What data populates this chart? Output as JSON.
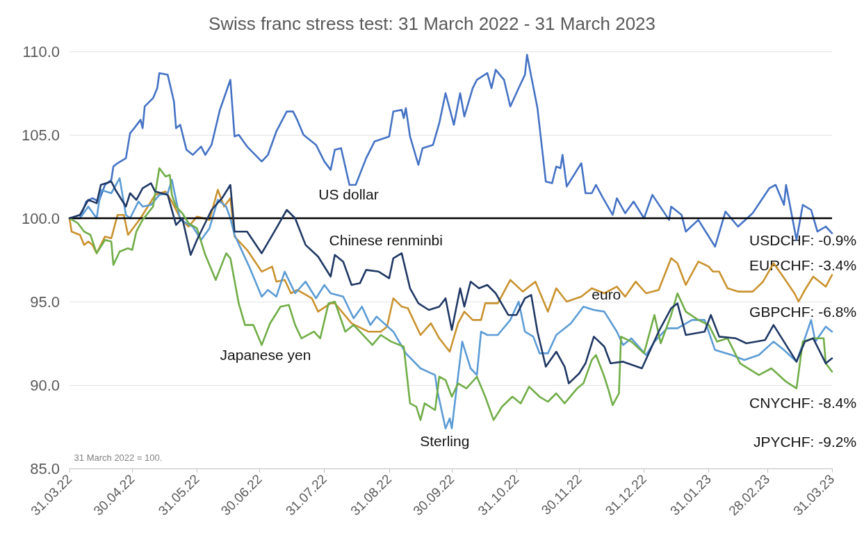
{
  "chart_data": {
    "type": "line",
    "title": "Swiss franc stress test: 31 March 2022 - 31 March 2023",
    "xlim": [
      "2022-03-31",
      "2023-03-31"
    ],
    "xticks": [
      {
        "value": "2022-03-31",
        "label": "31.03.22"
      },
      {
        "value": "2022-04-30",
        "label": "30.04.22"
      },
      {
        "value": "2022-05-31",
        "label": "31.05.22"
      },
      {
        "value": "2022-06-30",
        "label": "30.06.22"
      },
      {
        "value": "2022-07-31",
        "label": "31.07.22"
      },
      {
        "value": "2022-08-31",
        "label": "31.08.22"
      },
      {
        "value": "2022-09-30",
        "label": "30.09.22"
      },
      {
        "value": "2022-10-31",
        "label": "31.10.22"
      },
      {
        "value": "2022-11-30",
        "label": "30.11.22"
      },
      {
        "value": "2022-12-31",
        "label": "31.12.22"
      },
      {
        "value": "2023-01-31",
        "label": "31.01.23"
      },
      {
        "value": "2023-02-28",
        "label": "28.02.23"
      },
      {
        "value": "2023-03-31",
        "label": "31.03.23"
      }
    ],
    "ylim": [
      85,
      110
    ],
    "yticks": [
      {
        "value": 85,
        "label": "85.0"
      },
      {
        "value": 90,
        "label": "90.0"
      },
      {
        "value": 95,
        "label": "95.0"
      },
      {
        "value": 100,
        "label": "100.0"
      },
      {
        "value": 105,
        "label": "105.0"
      },
      {
        "value": 110,
        "label": "110.0"
      }
    ],
    "grid": "y",
    "ref_lines": [
      {
        "axis": "y",
        "value": 100,
        "color": "#000000"
      }
    ],
    "series": [
      {
        "name": "US dollar",
        "color": "#4472c4",
        "x": [
          "2022-03-31",
          "2022-04-05",
          "2022-04-08",
          "2022-04-11",
          "2022-04-14",
          "2022-04-17",
          "2022-04-20",
          "2022-04-21",
          "2022-04-23",
          "2022-04-27",
          "2022-04-29",
          "2022-05-01",
          "2022-05-04",
          "2022-05-05",
          "2022-05-06",
          "2022-05-10",
          "2022-05-12",
          "2022-05-13",
          "2022-05-17",
          "2022-05-20",
          "2022-05-21",
          "2022-05-23",
          "2022-05-26",
          "2022-05-29",
          "2022-06-02",
          "2022-06-04",
          "2022-06-07",
          "2022-06-11",
          "2022-06-16",
          "2022-06-18",
          "2022-06-20",
          "2022-06-24",
          "2022-07-01",
          "2022-07-04",
          "2022-07-08",
          "2022-07-13",
          "2022-07-16",
          "2022-07-18",
          "2022-07-21",
          "2022-07-27",
          "2022-07-31",
          "2022-08-03",
          "2022-08-05",
          "2022-08-08",
          "2022-08-12",
          "2022-08-15",
          "2022-08-20",
          "2022-08-24",
          "2022-08-31",
          "2022-09-02",
          "2022-09-06",
          "2022-09-07",
          "2022-09-08",
          "2022-09-10",
          "2022-09-14",
          "2022-09-16",
          "2022-09-21",
          "2022-09-24",
          "2022-09-27",
          "2022-10-01",
          "2022-10-04",
          "2022-10-06",
          "2022-10-10",
          "2022-10-12",
          "2022-10-17",
          "2022-10-19",
          "2022-10-21",
          "2022-10-25",
          "2022-10-28",
          "2022-11-01",
          "2022-11-04",
          "2022-11-05",
          "2022-11-10",
          "2022-11-14",
          "2022-11-17",
          "2022-11-19",
          "2022-11-21",
          "2022-11-22",
          "2022-11-24",
          "2022-12-01",
          "2022-12-03",
          "2022-12-06",
          "2022-12-08",
          "2022-12-11",
          "2022-12-16",
          "2022-12-18",
          "2022-12-22",
          "2022-12-26",
          "2022-12-31",
          "2023-01-04",
          "2023-01-12",
          "2023-01-13",
          "2023-01-18",
          "2023-01-20",
          "2023-01-26",
          "2023-02-03",
          "2023-02-08",
          "2023-02-14",
          "2023-02-21",
          "2023-03-01",
          "2023-03-04",
          "2023-03-08",
          "2023-03-09",
          "2023-03-14",
          "2023-03-17",
          "2023-03-21",
          "2023-03-24",
          "2023-03-28",
          "2023-03-31"
        ],
        "values": [
          100,
          100,
          101,
          101.2,
          101,
          102,
          102.3,
          103.1,
          103.3,
          103.6,
          105.1,
          105.4,
          105.9,
          105.4,
          106.7,
          107.2,
          107.8,
          108.7,
          108.6,
          107,
          105.4,
          105.6,
          104.1,
          103.8,
          104.3,
          103.8,
          104.4,
          106.5,
          108.3,
          104.9,
          105,
          104.3,
          103.4,
          103.8,
          105.2,
          106.4,
          106.4,
          105.9,
          105,
          104.4,
          103.4,
          102.9,
          104.1,
          104.2,
          102,
          102,
          103.6,
          104.6,
          104.9,
          106.4,
          106.5,
          106,
          106.6,
          104.9,
          103.2,
          104.2,
          104.4,
          105.7,
          107.5,
          105.6,
          107.5,
          106.1,
          107.8,
          108.3,
          108.7,
          107.8,
          108.9,
          108.3,
          106.7,
          107.8,
          108.6,
          109.8,
          106.6,
          102.2,
          102.1,
          103.1,
          103,
          103.8,
          101.9,
          103.3,
          101.5,
          101.5,
          102,
          101.3,
          100.2,
          101.2,
          100.3,
          101,
          100,
          101.4,
          99.9,
          100.7,
          100.2,
          99.2,
          99.9,
          98.3,
          100.4,
          99.5,
          100.3,
          101.8,
          102,
          100.8,
          102,
          98.7,
          100.8,
          100.5,
          99.2,
          99.5,
          99.1
        ]
      },
      {
        "name": "euro",
        "color": "#c9922e",
        "x": [
          "2022-03-31",
          "2022-04-01",
          "2022-04-05",
          "2022-04-07",
          "2022-04-09",
          "2022-04-11",
          "2022-04-13",
          "2022-04-17",
          "2022-04-20",
          "2022-04-23",
          "2022-04-26",
          "2022-04-28",
          "2022-05-04",
          "2022-05-08",
          "2022-05-11",
          "2022-05-16",
          "2022-05-19",
          "2022-05-23",
          "2022-05-27",
          "2022-05-31",
          "2022-06-06",
          "2022-06-10",
          "2022-06-13",
          "2022-06-16",
          "2022-06-18",
          "2022-06-24",
          "2022-07-01",
          "2022-07-06",
          "2022-07-08",
          "2022-07-12",
          "2022-07-15",
          "2022-07-18",
          "2022-07-25",
          "2022-07-28",
          "2022-08-03",
          "2022-08-05",
          "2022-08-13",
          "2022-08-21",
          "2022-08-27",
          "2022-08-30",
          "2022-09-02",
          "2022-09-06",
          "2022-09-09",
          "2022-09-15",
          "2022-09-20",
          "2022-09-24",
          "2022-09-29",
          "2022-10-03",
          "2022-10-06",
          "2022-10-10",
          "2022-10-14",
          "2022-10-16",
          "2022-10-22",
          "2022-10-28",
          "2022-11-03",
          "2022-11-09",
          "2022-11-15",
          "2022-11-19",
          "2022-11-24",
          "2022-12-01",
          "2022-12-06",
          "2022-12-12",
          "2022-12-18",
          "2022-12-22",
          "2022-12-27",
          "2023-01-01",
          "2023-01-07",
          "2023-01-13",
          "2023-01-16",
          "2023-01-20",
          "2023-01-26",
          "2023-01-31",
          "2023-02-02",
          "2023-02-05",
          "2023-02-09",
          "2023-02-14",
          "2023-02-21",
          "2023-02-26",
          "2023-03-03",
          "2023-03-07",
          "2023-03-13",
          "2023-03-15",
          "2023-03-18",
          "2023-03-22",
          "2023-03-28",
          "2023-03-31"
        ],
        "values": [
          100,
          99.2,
          99,
          98.4,
          98.6,
          98.4,
          97.9,
          98.9,
          98.8,
          100.2,
          100.2,
          99,
          100,
          100.8,
          101.4,
          101.6,
          101,
          100,
          99.5,
          100.1,
          99.9,
          101.7,
          100.7,
          101.2,
          98.9,
          98.1,
          96.8,
          97.1,
          96.2,
          96.3,
          95.5,
          95.7,
          95.2,
          94.4,
          94.9,
          94.9,
          93.7,
          93.2,
          93.2,
          93.5,
          95.2,
          94.7,
          94.6,
          93,
          93.7,
          92.8,
          92,
          93.7,
          94.4,
          93.9,
          93.9,
          94.9,
          94.9,
          96.3,
          95.6,
          96.2,
          94.4,
          95.8,
          95,
          95.3,
          95.8,
          95.5,
          95.9,
          95.3,
          96.2,
          95.5,
          95.7,
          97.6,
          97.3,
          96,
          97.4,
          97.1,
          96.8,
          96.8,
          95.8,
          95.6,
          95.6,
          96.2,
          97.3,
          96.6,
          95.5,
          95,
          95.7,
          96.5,
          95.9,
          96.6
        ]
      },
      {
        "name": "Sterling",
        "color": "#5b9bd5",
        "x": [
          "2022-03-31",
          "2022-04-05",
          "2022-04-09",
          "2022-04-13",
          "2022-04-15",
          "2022-04-20",
          "2022-04-24",
          "2022-04-27",
          "2022-04-29",
          "2022-05-03",
          "2022-05-05",
          "2022-05-09",
          "2022-05-13",
          "2022-05-17",
          "2022-05-19",
          "2022-05-23",
          "2022-05-29",
          "2022-06-02",
          "2022-06-06",
          "2022-06-10",
          "2022-06-14",
          "2022-06-16",
          "2022-06-18",
          "2022-06-25",
          "2022-07-01",
          "2022-07-04",
          "2022-07-08",
          "2022-07-12",
          "2022-07-17",
          "2022-07-22",
          "2022-07-27",
          "2022-07-31",
          "2022-08-03",
          "2022-08-09",
          "2022-08-14",
          "2022-08-18",
          "2022-08-22",
          "2022-08-25",
          "2022-09-02",
          "2022-09-08",
          "2022-09-15",
          "2022-09-22",
          "2022-09-23",
          "2022-09-27",
          "2022-09-29",
          "2022-09-30",
          "2022-10-02",
          "2022-10-05",
          "2022-10-09",
          "2022-10-12",
          "2022-10-14",
          "2022-10-17",
          "2022-10-22",
          "2022-10-28",
          "2022-11-01",
          "2022-11-04",
          "2022-11-08",
          "2022-11-11",
          "2022-11-15",
          "2022-11-19",
          "2022-11-26",
          "2022-12-02",
          "2022-12-07",
          "2022-12-12",
          "2022-12-18",
          "2022-12-21",
          "2022-12-25",
          "2023-01-01",
          "2023-01-05",
          "2023-01-11",
          "2023-01-16",
          "2023-01-23",
          "2023-01-29",
          "2023-02-03",
          "2023-02-11",
          "2023-02-17",
          "2023-02-24",
          "2023-03-03",
          "2023-03-08",
          "2023-03-14",
          "2023-03-18",
          "2023-03-21",
          "2023-03-23",
          "2023-03-28",
          "2023-03-31"
        ],
        "values": [
          100,
          100,
          100.7,
          100,
          101.7,
          101.5,
          102.4,
          100.2,
          100,
          101,
          100.7,
          100.8,
          101.4,
          101.5,
          102.3,
          99.9,
          99.5,
          98.7,
          99.4,
          101.1,
          100.7,
          100,
          99,
          97.1,
          95.3,
          95.7,
          95.3,
          96.8,
          95.5,
          96.2,
          95.2,
          96,
          95.5,
          95.3,
          94,
          94.7,
          93.6,
          94.1,
          93.2,
          91.9,
          91,
          90.6,
          89.7,
          87.4,
          88,
          87.4,
          89.5,
          92.6,
          91,
          90.6,
          93.2,
          93,
          93,
          93.9,
          95,
          93.2,
          92.9,
          91.9,
          91.9,
          93,
          93.7,
          94.7,
          94.5,
          94.4,
          93.2,
          92.4,
          92.8,
          91.8,
          92.6,
          93.4,
          93.4,
          93.9,
          93.9,
          92.1,
          91.8,
          91.5,
          91.8,
          92.6,
          92.1,
          91.4,
          92.8,
          93.9,
          92.6,
          93.5,
          93.2
        ]
      },
      {
        "name": "Japanese yen",
        "color": "#70ad47",
        "x": [
          "2022-03-31",
          "2022-04-04",
          "2022-04-07",
          "2022-04-10",
          "2022-04-13",
          "2022-04-17",
          "2022-04-20",
          "2022-04-21",
          "2022-04-24",
          "2022-04-28",
          "2022-04-30",
          "2022-05-02",
          "2022-05-05",
          "2022-05-10",
          "2022-05-13",
          "2022-05-16",
          "2022-05-18",
          "2022-05-19",
          "2022-05-21",
          "2022-05-24",
          "2022-05-27",
          "2022-05-31",
          "2022-06-04",
          "2022-06-09",
          "2022-06-14",
          "2022-06-16",
          "2022-06-20",
          "2022-06-23",
          "2022-06-27",
          "2022-07-01",
          "2022-07-05",
          "2022-07-10",
          "2022-07-14",
          "2022-07-17",
          "2022-07-20",
          "2022-07-26",
          "2022-07-29",
          "2022-08-02",
          "2022-08-05",
          "2022-08-10",
          "2022-08-14",
          "2022-08-17",
          "2022-08-23",
          "2022-08-27",
          "2022-09-01",
          "2022-09-07",
          "2022-09-10",
          "2022-09-13",
          "2022-09-15",
          "2022-09-17",
          "2022-09-22",
          "2022-09-24",
          "2022-09-27",
          "2022-09-30",
          "2022-10-03",
          "2022-10-07",
          "2022-10-12",
          "2022-10-16",
          "2022-10-20",
          "2022-10-24",
          "2022-10-29",
          "2022-11-02",
          "2022-11-06",
          "2022-11-11",
          "2022-11-15",
          "2022-11-19",
          "2022-11-23",
          "2022-11-29",
          "2022-12-02",
          "2022-12-06",
          "2022-12-08",
          "2022-12-12",
          "2022-12-14",
          "2022-12-16",
          "2022-12-19",
          "2022-12-20",
          "2022-12-25",
          "2022-12-31",
          "2023-01-05",
          "2023-01-08",
          "2023-01-13",
          "2023-01-16",
          "2023-01-20",
          "2023-01-26",
          "2023-01-31",
          "2023-02-04",
          "2023-02-09",
          "2023-02-15",
          "2023-02-24",
          "2023-03-02",
          "2023-03-09",
          "2023-03-14",
          "2023-03-17",
          "2023-03-22",
          "2023-03-27",
          "2023-03-28",
          "2023-03-31"
        ],
        "values": [
          100,
          99.7,
          99.2,
          99,
          97.9,
          98.7,
          98.6,
          97.2,
          98,
          98.2,
          98.1,
          99.2,
          99.9,
          100.7,
          103,
          102.5,
          102.6,
          101.4,
          100.7,
          100.3,
          99.7,
          99.4,
          97.8,
          96.3,
          97.9,
          97.6,
          94.9,
          93.6,
          93.6,
          92.4,
          93.7,
          94.7,
          94.8,
          93.6,
          92.8,
          93.2,
          92.8,
          94.9,
          95,
          93.2,
          93.6,
          93.2,
          92.4,
          93,
          92.6,
          92.3,
          88.9,
          88.7,
          87.9,
          88.9,
          88.5,
          90.5,
          90.3,
          89.3,
          90.1,
          89.8,
          90.5,
          89.3,
          87.9,
          88.7,
          89.3,
          88.9,
          89.9,
          89.3,
          89,
          89.5,
          88.9,
          89.8,
          90.1,
          91.5,
          91.8,
          90.5,
          89.7,
          88.8,
          89.5,
          92.9,
          92.6,
          91.9,
          94.2,
          92.5,
          94.2,
          95.5,
          94.4,
          93.9,
          93.6,
          92.6,
          92.8,
          91.3,
          90.6,
          91,
          90.2,
          89.8,
          92.6,
          92.8,
          92.8,
          91.3,
          90.8
        ]
      },
      {
        "name": "Chinese renminbi",
        "color": "#1f3864",
        "x": [
          "2022-03-31",
          "2022-04-05",
          "2022-04-09",
          "2022-04-13",
          "2022-04-15",
          "2022-04-20",
          "2022-04-22",
          "2022-04-27",
          "2022-04-29",
          "2022-05-02",
          "2022-05-05",
          "2022-05-09",
          "2022-05-11",
          "2022-05-17",
          "2022-05-21",
          "2022-05-24",
          "2022-05-28",
          "2022-05-31",
          "2022-06-07",
          "2022-06-12",
          "2022-06-16",
          "2022-06-18",
          "2022-06-24",
          "2022-07-01",
          "2022-07-08",
          "2022-07-13",
          "2022-07-17",
          "2022-07-22",
          "2022-07-28",
          "2022-08-03",
          "2022-08-05",
          "2022-08-09",
          "2022-08-13",
          "2022-08-17",
          "2022-08-20",
          "2022-08-26",
          "2022-08-31",
          "2022-09-02",
          "2022-09-06",
          "2022-09-10",
          "2022-09-14",
          "2022-09-19",
          "2022-09-24",
          "2022-09-27",
          "2022-09-30",
          "2022-10-04",
          "2022-10-06",
          "2022-10-09",
          "2022-10-13",
          "2022-10-17",
          "2022-10-21",
          "2022-10-27",
          "2022-10-31",
          "2022-11-04",
          "2022-11-07",
          "2022-11-10",
          "2022-11-14",
          "2022-11-19",
          "2022-11-23",
          "2022-11-25",
          "2022-11-30",
          "2022-12-03",
          "2022-12-07",
          "2022-12-12",
          "2022-12-15",
          "2022-12-21",
          "2022-12-30",
          "2023-01-07",
          "2023-01-13",
          "2023-01-16",
          "2023-01-20",
          "2023-01-29",
          "2023-02-01",
          "2023-02-05",
          "2023-02-13",
          "2023-02-18",
          "2023-02-27",
          "2023-03-03",
          "2023-03-08",
          "2023-03-14",
          "2023-03-18",
          "2023-03-22",
          "2023-03-28",
          "2023-03-31"
        ],
        "values": [
          100,
          100.2,
          101.1,
          100.9,
          102,
          102.2,
          101.7,
          100.7,
          101.5,
          101.1,
          101.8,
          102.1,
          101.6,
          101.4,
          99.6,
          100,
          97.8,
          98.7,
          100.5,
          101.2,
          102,
          99.2,
          99.2,
          97.9,
          99.4,
          100.5,
          100,
          98.4,
          97.7,
          96.5,
          97.8,
          97.4,
          96,
          96.1,
          96.9,
          96.8,
          96.4,
          97.6,
          97.9,
          95.8,
          94.9,
          94.5,
          94.7,
          95.2,
          93.3,
          95.8,
          94.7,
          96.2,
          95.8,
          96,
          95.5,
          94.2,
          94.2,
          95.2,
          95.4,
          93.2,
          91.1,
          92,
          91.1,
          90.1,
          90.7,
          91.3,
          92.9,
          92.3,
          91.3,
          91.4,
          91,
          93.2,
          94.6,
          94.9,
          93,
          93.2,
          94.2,
          92.9,
          92.8,
          92.5,
          92.7,
          93.6,
          92.6,
          91.4,
          92.6,
          92.8,
          91.3,
          91.6
        ]
      }
    ],
    "annotations": [
      "USDCHF: -0.9%",
      "EURCHF: -3.4%",
      "GBPCHF: -6.8%",
      "CNYCHF: -8.4%",
      "JPYCHF: -9.2%",
      "31 March 2022 = 100."
    ]
  }
}
